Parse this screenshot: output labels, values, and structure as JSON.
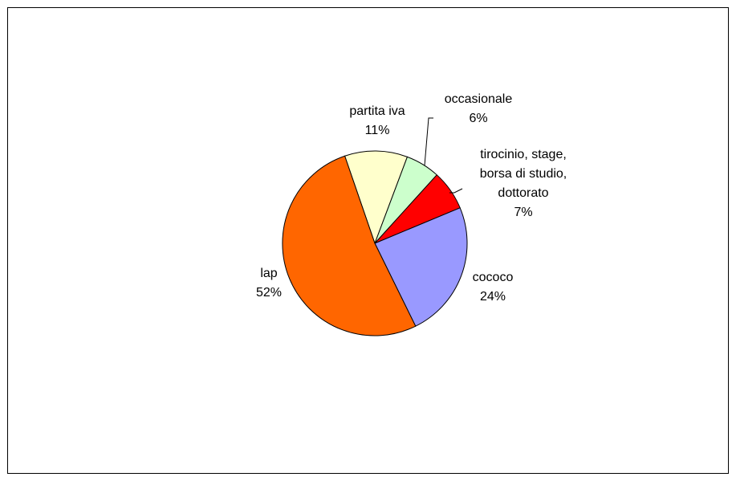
{
  "chart_data": {
    "type": "pie",
    "title": "",
    "slices": [
      {
        "label_lines": [
          "partita iva"
        ],
        "percent_label": "11%",
        "value": 11,
        "color": "#FFFFCC"
      },
      {
        "label_lines": [
          "occasionale"
        ],
        "percent_label": "6%",
        "value": 6,
        "color": "#CCFFCC"
      },
      {
        "label_lines": [
          "tirocinio, stage,",
          "borsa di studio,",
          "dottorato"
        ],
        "percent_label": "7%",
        "value": 7,
        "color": "#FF0000"
      },
      {
        "label_lines": [
          "cococo"
        ],
        "percent_label": "24%",
        "value": 24,
        "color": "#9999FF"
      },
      {
        "label_lines": [
          "lap"
        ],
        "percent_label": "52%",
        "value": 52,
        "color": "#FF6600"
      }
    ],
    "start_angle_deg": -19,
    "direction": "clockwise",
    "legend": "none",
    "data_labels": "category name and percentage"
  }
}
